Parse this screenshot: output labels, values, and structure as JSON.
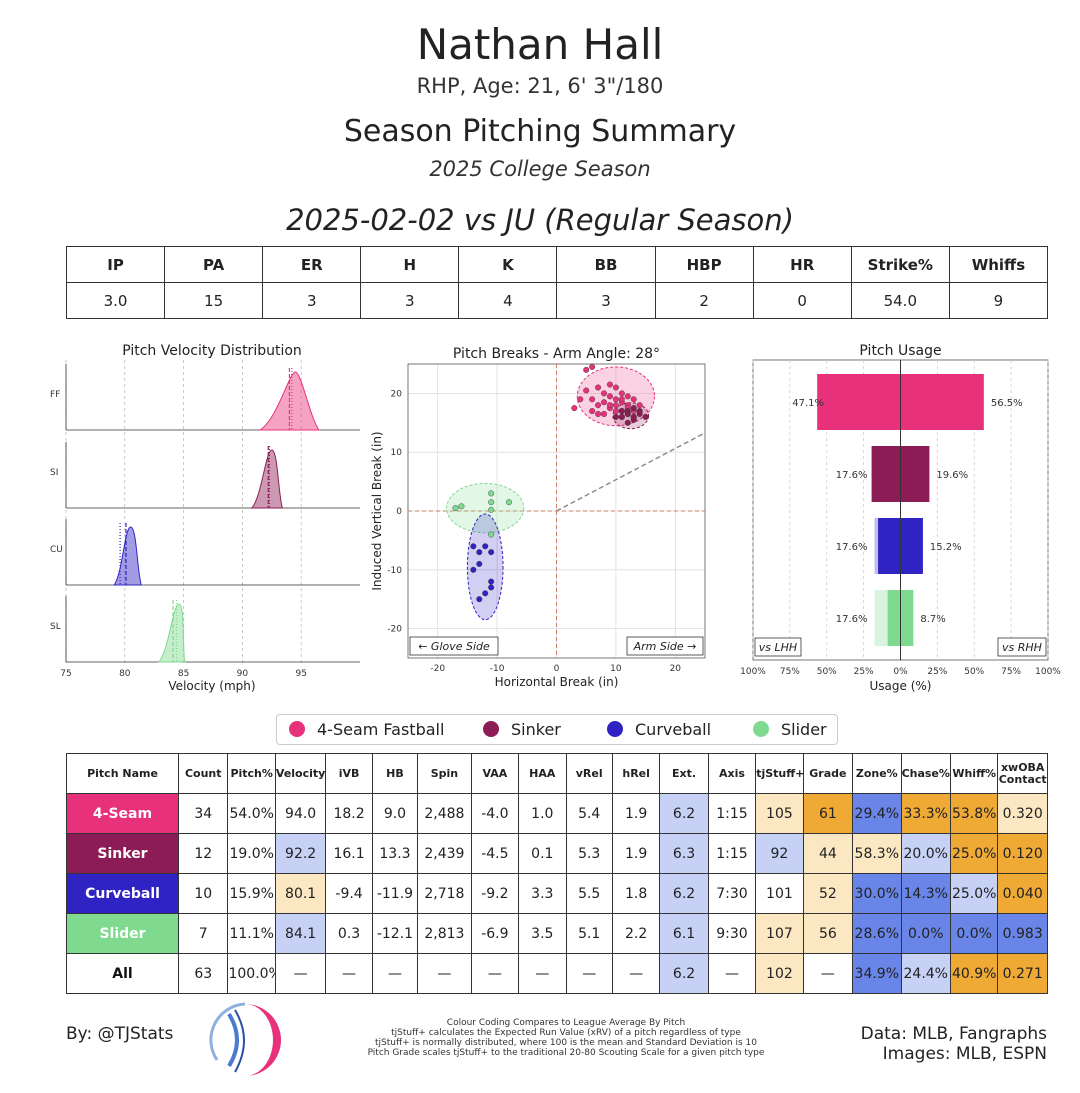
{
  "header": {
    "name": "Nathan Hall",
    "bio": "RHP, Age: 21, 6' 3\"/180",
    "title": "Season Pitching Summary",
    "season": "2025 College Season",
    "game": "2025-02-02 vs JU (Regular Season)"
  },
  "game_stats": {
    "headers": [
      "IP",
      "PA",
      "ER",
      "H",
      "K",
      "BB",
      "HBP",
      "HR",
      "Strike%",
      "Whiffs"
    ],
    "values": [
      "3.0",
      "15",
      "3",
      "3",
      "4",
      "3",
      "2",
      "0",
      "54.0",
      "9"
    ]
  },
  "colors": {
    "FF": "#e8317b",
    "SI": "#8b1c55",
    "CU": "#3023c4",
    "SL": "#7fd98f",
    "good_dark": "#6985e8",
    "good_light": "#c6d1f5",
    "neutral": "#ffffff",
    "bad_light": "#fbe7c2",
    "bad_dark": "#efaa36"
  },
  "chart_data": [
    {
      "type": "area",
      "title": "Pitch Velocity Distribution",
      "xlabel": "Velocity (mph)",
      "xlim": [
        75,
        100
      ],
      "xticks": [
        "75",
        "80",
        "85",
        "90",
        "95"
      ],
      "xtick_values": [
        75,
        80,
        85,
        90,
        95
      ],
      "series": [
        {
          "name": "FF",
          "min": 91.5,
          "max": 96.5,
          "mean": 94.0,
          "median": 94.2,
          "peak": 94.5
        },
        {
          "name": "SI",
          "min": 90.8,
          "max": 93.4,
          "mean": 92.2,
          "median": 92.3,
          "peak": 92.5
        },
        {
          "name": "CU",
          "min": 79.1,
          "max": 81.4,
          "mean": 80.1,
          "median": 79.6,
          "peak": 80.5
        },
        {
          "name": "SL",
          "min": 82.9,
          "max": 85.1,
          "mean": 84.1,
          "median": 84.4,
          "peak": 84.6
        }
      ]
    },
    {
      "type": "scatter",
      "title": "Pitch Breaks - Arm Angle: 28°",
      "xlabel": "Horizontal Break (in)",
      "ylabel": "Induced Vertical Break (in)",
      "xlim": [
        -25,
        25
      ],
      "ylim": [
        -25,
        25
      ],
      "xticks": [
        -20,
        -10,
        0,
        10,
        20
      ],
      "yticks": [
        -20,
        -10,
        0,
        10,
        20
      ],
      "annotations": [
        "← Glove Side",
        "Arm Side →"
      ],
      "arm_angle_deg": 28,
      "ellipses": [
        {
          "name": "FF",
          "cx": 10,
          "cy": 19.5,
          "rx": 6.5,
          "ry": 5
        },
        {
          "name": "SI",
          "cx": 12.5,
          "cy": 16.2,
          "rx": 3,
          "ry": 2.2
        },
        {
          "name": "SL",
          "cx": -12,
          "cy": 0.5,
          "rx": 6.5,
          "ry": 4.2
        },
        {
          "name": "CU",
          "cx": -12,
          "cy": -9.5,
          "rx": 3,
          "ry": 9
        }
      ],
      "series": [
        {
          "name": "FF",
          "points": [
            [
              5,
              24
            ],
            [
              6,
              24.5
            ],
            [
              5,
              20.5
            ],
            [
              6,
              19
            ],
            [
              7,
              21
            ],
            [
              8,
              20
            ],
            [
              9,
              19.5
            ],
            [
              10,
              19
            ],
            [
              11,
              18.5
            ],
            [
              12,
              18
            ],
            [
              9,
              17.5
            ],
            [
              10,
              17
            ],
            [
              11,
              17
            ],
            [
              8,
              18.5
            ],
            [
              7,
              18
            ],
            [
              13,
              19
            ],
            [
              11,
              20
            ],
            [
              12,
              16.5
            ],
            [
              10,
              21
            ],
            [
              9,
              21.5
            ],
            [
              4,
              19
            ],
            [
              3,
              17.5
            ],
            [
              13,
              17
            ],
            [
              12,
              19.5
            ],
            [
              8,
              16.5
            ],
            [
              11,
              16
            ],
            [
              14,
              18
            ],
            [
              10,
              18
            ],
            [
              9,
              18
            ],
            [
              7,
              16.5
            ],
            [
              6,
              17
            ],
            [
              13,
              16
            ],
            [
              12,
              17.5
            ],
            [
              11,
              19
            ]
          ]
        },
        {
          "name": "SI",
          "points": [
            [
              11,
              16
            ],
            [
              12,
              17
            ],
            [
              13,
              15.5
            ],
            [
              14,
              16.5
            ],
            [
              12,
              15
            ],
            [
              13,
              17.5
            ],
            [
              11,
              17
            ],
            [
              10,
              16
            ],
            [
              14,
              17
            ],
            [
              13,
              16
            ],
            [
              12,
              16.5
            ],
            [
              15,
              16
            ]
          ]
        },
        {
          "name": "CU",
          "points": [
            [
              -14,
              -6
            ],
            [
              -13,
              -7
            ],
            [
              -12,
              -6
            ],
            [
              -11,
              -7
            ],
            [
              -14,
              -10
            ],
            [
              -13,
              -9
            ],
            [
              -11,
              -12
            ],
            [
              -12,
              -14
            ],
            [
              -13,
              -15
            ],
            [
              -11,
              -13
            ]
          ]
        },
        {
          "name": "SL",
          "points": [
            [
              -17,
              0.5
            ],
            [
              -16,
              0.8
            ],
            [
              -11,
              1.5
            ],
            [
              -11,
              3
            ],
            [
              -8,
              1.5
            ],
            [
              -11,
              -4
            ],
            [
              -11,
              0.2
            ]
          ]
        }
      ]
    },
    {
      "type": "bar",
      "title": "Pitch Usage",
      "xlabel": "Usage (%)",
      "xticks": [
        "100%",
        "75%",
        "50%",
        "25%",
        "0%",
        "25%",
        "50%",
        "75%",
        "100%"
      ],
      "corner_labels": [
        "vs LHH",
        "vs RHH"
      ],
      "categories": [
        "FF",
        "SI",
        "CU",
        "SL"
      ],
      "series": [
        {
          "name": "vs LHH",
          "values": [
            47.1,
            17.6,
            17.6,
            17.6
          ],
          "labels": [
            "47.1%",
            "17.6%",
            "17.6%",
            "17.6%"
          ]
        },
        {
          "name": "vs RHH",
          "values": [
            56.5,
            19.6,
            15.2,
            8.7
          ],
          "labels": [
            "56.5%",
            "19.6%",
            "15.2%",
            "8.7%"
          ]
        }
      ]
    }
  ],
  "legend": [
    {
      "key": "FF",
      "label": "4-Seam Fastball"
    },
    {
      "key": "SI",
      "label": "Sinker"
    },
    {
      "key": "CU",
      "label": "Curveball"
    },
    {
      "key": "SL",
      "label": "Slider"
    }
  ],
  "metrics_table": {
    "headers": [
      "Pitch Name",
      "Count",
      "Pitch%",
      "Velocity",
      "iVB",
      "HB",
      "Spin",
      "VAA",
      "HAA",
      "vRel",
      "hRel",
      "Ext.",
      "Axis",
      "tjStuff+",
      "Grade",
      "Zone%",
      "Chase%",
      "Whiff%",
      "xwOBA Contact"
    ],
    "rows": [
      {
        "name": "4-Seam",
        "key": "FF",
        "cells": [
          "34",
          "54.0%",
          "94.0",
          "18.2",
          "9.0",
          "2,488",
          "-4.0",
          "1.0",
          "5.4",
          "1.9",
          "6.2",
          "1:15",
          "105",
          "61",
          "29.4%",
          "33.3%",
          "53.8%",
          "0.320"
        ],
        "shade": [
          "",
          "",
          "",
          "",
          "",
          "",
          "",
          "",
          "",
          "",
          "good_light",
          "",
          "bad_light",
          "bad_dark",
          "good_dark",
          "bad_dark",
          "bad_dark",
          "bad_light"
        ]
      },
      {
        "name": "Sinker",
        "key": "SI",
        "cells": [
          "12",
          "19.0%",
          "92.2",
          "16.1",
          "13.3",
          "2,439",
          "-4.5",
          "0.1",
          "5.3",
          "1.9",
          "6.3",
          "1:15",
          "92",
          "44",
          "58.3%",
          "20.0%",
          "25.0%",
          "0.120"
        ],
        "shade": [
          "",
          "",
          "good_light",
          "",
          "",
          "",
          "",
          "",
          "",
          "",
          "good_light",
          "",
          "good_light",
          "bad_light",
          "bad_light",
          "good_light",
          "bad_dark",
          "bad_dark"
        ]
      },
      {
        "name": "Curveball",
        "key": "CU",
        "cells": [
          "10",
          "15.9%",
          "80.1",
          "-9.4",
          "-11.9",
          "2,718",
          "-9.2",
          "3.3",
          "5.5",
          "1.8",
          "6.2",
          "7:30",
          "101",
          "52",
          "30.0%",
          "14.3%",
          "25.0%",
          "0.040"
        ],
        "shade": [
          "",
          "",
          "bad_light",
          "",
          "",
          "",
          "",
          "",
          "",
          "",
          "good_light",
          "",
          "",
          "bad_light",
          "good_dark",
          "good_dark",
          "good_light",
          "bad_dark"
        ]
      },
      {
        "name": "Slider",
        "key": "SL",
        "cells": [
          "7",
          "11.1%",
          "84.1",
          "0.3",
          "-12.1",
          "2,813",
          "-6.9",
          "3.5",
          "5.1",
          "2.2",
          "6.1",
          "9:30",
          "107",
          "56",
          "28.6%",
          "0.0%",
          "0.0%",
          "0.983"
        ],
        "shade": [
          "",
          "",
          "good_light",
          "",
          "",
          "",
          "",
          "",
          "",
          "",
          "good_light",
          "",
          "bad_light",
          "bad_light",
          "good_dark",
          "good_dark",
          "good_dark",
          "good_dark"
        ]
      },
      {
        "name": "All",
        "key": "",
        "cells": [
          "63",
          "100.0%",
          "—",
          "—",
          "—",
          "—",
          "—",
          "—",
          "—",
          "—",
          "6.2",
          "—",
          "102",
          "—",
          "34.9%",
          "24.4%",
          "40.9%",
          "0.271"
        ],
        "shade": [
          "",
          "",
          "",
          "",
          "",
          "",
          "",
          "",
          "",
          "",
          "good_light",
          "",
          "bad_light",
          "",
          "good_dark",
          "good_light",
          "bad_dark",
          "bad_dark"
        ]
      }
    ]
  },
  "footer": {
    "byline": "By: @TJStats",
    "notes": [
      "Colour Coding Compares to League Average By Pitch",
      "tjStuff+ calculates the Expected Run Value (xRV) of a pitch regardless of type",
      "tjStuff+ is normally distributed, where 100 is the mean and Standard Deviation is 10",
      "Pitch Grade scales tjStuff+ to the traditional 20-80 Scouting Scale for a given pitch type"
    ],
    "source_line1": "Data: MLB, Fangraphs",
    "source_line2": "Images: MLB, ESPN"
  }
}
